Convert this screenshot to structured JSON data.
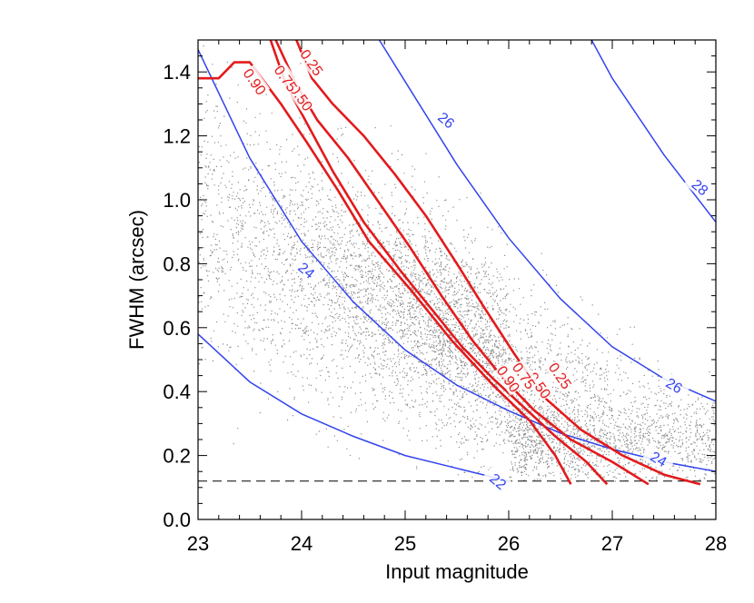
{
  "chart_data": {
    "type": "scatter",
    "title": "",
    "xlabel": "Input magnitude",
    "ylabel": "FWHM (arcsec)",
    "xlim": [
      23,
      28
    ],
    "ylim": [
      0,
      1.5
    ],
    "xticks": [
      "23",
      "24",
      "25",
      "26",
      "27",
      "28"
    ],
    "yticks": [
      "0.0",
      "0.2",
      "0.4",
      "0.6",
      "0.8",
      "1.0",
      "1.2",
      "1.4"
    ],
    "xtick_values": [
      23,
      24,
      25,
      26,
      27,
      28
    ],
    "ytick_values": [
      0.0,
      0.2,
      0.4,
      0.6,
      0.8,
      1.0,
      1.2,
      1.4
    ],
    "grid": false,
    "colors": {
      "scatter": "#8c8c8c",
      "completeness": "#e31a1c",
      "surface_brightness": "#3344ee",
      "floor": "#000000"
    },
    "scatter_description": {
      "count": 6500,
      "mag_range": [
        23.0,
        28.0
      ],
      "fwhm_floor": 0.12
    },
    "psf_floor": {
      "fwhm": 0.12,
      "label": ""
    },
    "surface_brightness_curves": [
      {
        "label": "22",
        "points": [
          [
            23.0,
            0.58
          ],
          [
            23.5,
            0.43
          ],
          [
            24.0,
            0.33
          ],
          [
            24.5,
            0.26
          ],
          [
            25.0,
            0.2
          ],
          [
            25.5,
            0.16
          ],
          [
            26.0,
            0.12
          ]
        ],
        "label_at": [
          25.9,
          0.12
        ]
      },
      {
        "label": "24",
        "points": [
          [
            23.0,
            1.47
          ],
          [
            23.5,
            1.13
          ],
          [
            24.0,
            0.87
          ],
          [
            24.5,
            0.68
          ],
          [
            25.0,
            0.53
          ],
          [
            25.5,
            0.42
          ],
          [
            26.0,
            0.34
          ],
          [
            26.5,
            0.27
          ],
          [
            27.0,
            0.22
          ],
          [
            27.5,
            0.18
          ],
          [
            28.0,
            0.15
          ]
        ],
        "label_at": [
          24.05,
          0.78
        ]
      },
      {
        "label": "26",
        "points": [
          [
            24.75,
            1.5
          ],
          [
            25.0,
            1.37
          ],
          [
            25.5,
            1.11
          ],
          [
            26.0,
            0.88
          ],
          [
            26.5,
            0.69
          ],
          [
            27.0,
            0.54
          ],
          [
            27.5,
            0.44
          ],
          [
            28.0,
            0.37
          ]
        ],
        "label_at": [
          25.4,
          1.25
        ]
      },
      {
        "label": "28",
        "points": [
          [
            26.8,
            1.5
          ],
          [
            27.0,
            1.38
          ],
          [
            27.5,
            1.14
          ],
          [
            28.0,
            0.93
          ]
        ],
        "label_at": [
          27.85,
          1.04
        ]
      }
    ],
    "extra_sb_labels": [
      {
        "label": "26",
        "at": [
          27.6,
          0.42
        ]
      },
      {
        "label": "24",
        "at": [
          27.45,
          0.19
        ]
      }
    ],
    "completeness_curves": [
      {
        "label": "0.25",
        "points": [
          [
            23.95,
            1.5
          ],
          [
            24.1,
            1.38
          ],
          [
            24.3,
            1.3
          ],
          [
            24.6,
            1.2
          ],
          [
            24.9,
            1.08
          ],
          [
            25.2,
            0.95
          ],
          [
            25.5,
            0.8
          ],
          [
            25.75,
            0.67
          ],
          [
            26.05,
            0.52
          ],
          [
            26.35,
            0.38
          ],
          [
            26.7,
            0.28
          ],
          [
            27.1,
            0.2
          ],
          [
            27.5,
            0.14
          ],
          [
            27.85,
            0.11
          ]
        ],
        "label_at": [
          24.1,
          1.43
        ],
        "label2_at": [
          26.5,
          0.45
        ]
      },
      {
        "label": "0.50",
        "points": [
          [
            23.75,
            1.5
          ],
          [
            23.95,
            1.36
          ],
          [
            24.15,
            1.25
          ],
          [
            24.45,
            1.13
          ],
          [
            24.75,
            0.99
          ],
          [
            25.05,
            0.85
          ],
          [
            25.35,
            0.7
          ],
          [
            25.65,
            0.56
          ],
          [
            25.95,
            0.44
          ],
          [
            26.25,
            0.34
          ],
          [
            26.6,
            0.25
          ],
          [
            27.0,
            0.18
          ],
          [
            27.35,
            0.11
          ]
        ],
        "label_at": [
          24.0,
          1.32
        ],
        "label2_at": [
          26.3,
          0.42
        ]
      },
      {
        "label": "0.75",
        "points": [
          [
            23.7,
            1.5
          ],
          [
            23.85,
            1.36
          ],
          [
            24.05,
            1.24
          ],
          [
            24.3,
            1.09
          ],
          [
            24.6,
            0.93
          ],
          [
            24.95,
            0.78
          ],
          [
            25.25,
            0.66
          ],
          [
            25.55,
            0.54
          ],
          [
            25.85,
            0.44
          ],
          [
            26.15,
            0.35
          ],
          [
            26.45,
            0.26
          ],
          [
            26.75,
            0.18
          ],
          [
            26.95,
            0.11
          ]
        ],
        "label_at": [
          23.85,
          1.38
        ],
        "label2_at": [
          26.15,
          0.45
        ]
      },
      {
        "label": "0.90",
        "points": [
          [
            23.0,
            1.38
          ],
          [
            23.2,
            1.38
          ],
          [
            23.35,
            1.43
          ],
          [
            23.5,
            1.43
          ],
          [
            23.8,
            1.3
          ],
          [
            24.05,
            1.18
          ],
          [
            24.35,
            1.03
          ],
          [
            24.65,
            0.87
          ],
          [
            25.05,
            0.72
          ],
          [
            25.45,
            0.56
          ],
          [
            25.85,
            0.42
          ],
          [
            26.2,
            0.31
          ],
          [
            26.45,
            0.2
          ],
          [
            26.6,
            0.11
          ]
        ],
        "label_at": [
          23.55,
          1.37
        ],
        "label2_at": [
          26.0,
          0.44
        ]
      }
    ]
  }
}
